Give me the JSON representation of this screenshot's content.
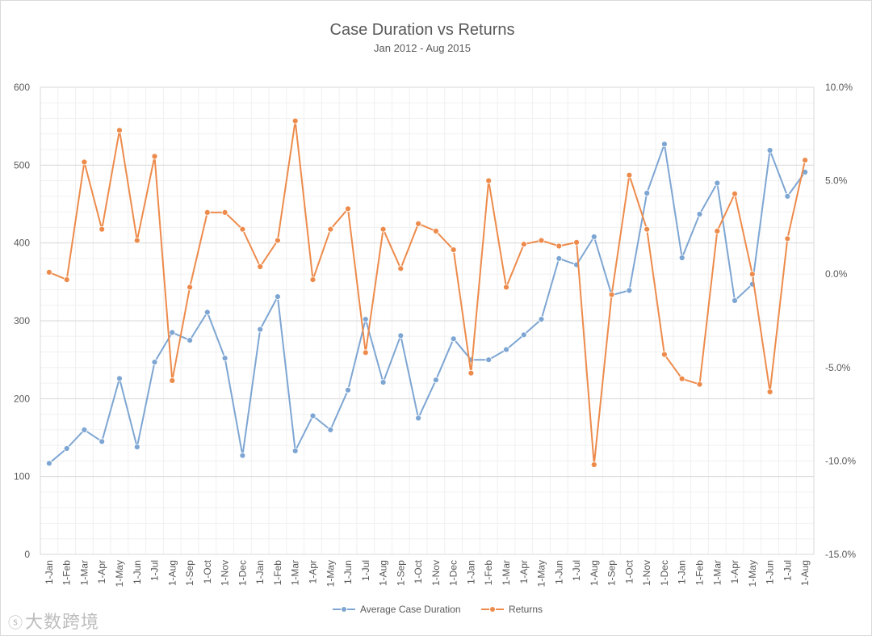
{
  "chart_data": {
    "type": "line",
    "title": "Case Duration vs Returns",
    "subtitle": "Jan 2012 - Aug 2015",
    "categories": [
      "1-Jan",
      "1-Feb",
      "1-Mar",
      "1-Apr",
      "1-May",
      "1-Jun",
      "1-Jul",
      "1-Aug",
      "1-Sep",
      "1-Oct",
      "1-Nov",
      "1-Dec",
      "1-Jan",
      "1-Feb",
      "1-Mar",
      "1-Apr",
      "1-May",
      "1-Jun",
      "1-Jul",
      "1-Aug",
      "1-Sep",
      "1-Oct",
      "1-Nov",
      "1-Dec",
      "1-Jan",
      "1-Feb",
      "1-Mar",
      "1-Apr",
      "1-May",
      "1-Jun",
      "1-Jul",
      "1-Aug",
      "1-Sep",
      "1-Oct",
      "1-Nov",
      "1-Dec",
      "1-Jan",
      "1-Feb",
      "1-Mar",
      "1-Apr",
      "1-May",
      "1-Jun",
      "1-Jul",
      "1-Aug"
    ],
    "y_left": {
      "min": 0,
      "max": 600,
      "ticks": [
        0,
        100,
        200,
        300,
        400,
        500,
        600
      ],
      "tick_labels": [
        "0",
        "100",
        "200",
        "300",
        "400",
        "500",
        "600"
      ]
    },
    "y_right": {
      "min": -15,
      "max": 10,
      "ticks": [
        -15,
        -10,
        -5,
        0,
        5,
        10
      ],
      "tick_labels": [
        "-15.0%",
        "-10.0%",
        "-5.0%",
        "0.0%",
        "5.0%",
        "10.0%"
      ]
    },
    "grid": true,
    "legend_position": "bottom",
    "series": [
      {
        "name": "Average Case Duration",
        "axis": "left",
        "color": "#7ea6d3",
        "values": [
          117,
          136,
          160,
          145,
          226,
          138,
          247,
          285,
          275,
          311,
          252,
          127,
          289,
          331,
          133,
          178,
          160,
          211,
          302,
          221,
          281,
          175,
          224,
          277,
          250,
          250,
          263,
          282,
          302,
          380,
          372,
          408,
          333,
          339,
          464,
          527,
          381,
          437,
          477,
          326,
          347,
          519,
          460,
          491
        ]
      },
      {
        "name": "Returns",
        "axis": "right",
        "color": "#ed8b4c",
        "values": [
          0.1,
          -0.3,
          6.0,
          2.4,
          7.7,
          1.8,
          6.3,
          -5.7,
          -0.7,
          3.3,
          3.3,
          2.4,
          0.4,
          1.8,
          8.2,
          -0.3,
          2.4,
          3.5,
          -4.2,
          2.4,
          0.3,
          2.7,
          2.3,
          1.3,
          -5.3,
          5.0,
          -0.7,
          1.6,
          1.8,
          1.5,
          1.7,
          -10.2,
          -1.1,
          5.3,
          2.4,
          -4.3,
          -5.6,
          -5.9,
          2.3,
          4.3,
          0.0,
          -6.3,
          1.9,
          6.1
        ]
      }
    ]
  }
}
